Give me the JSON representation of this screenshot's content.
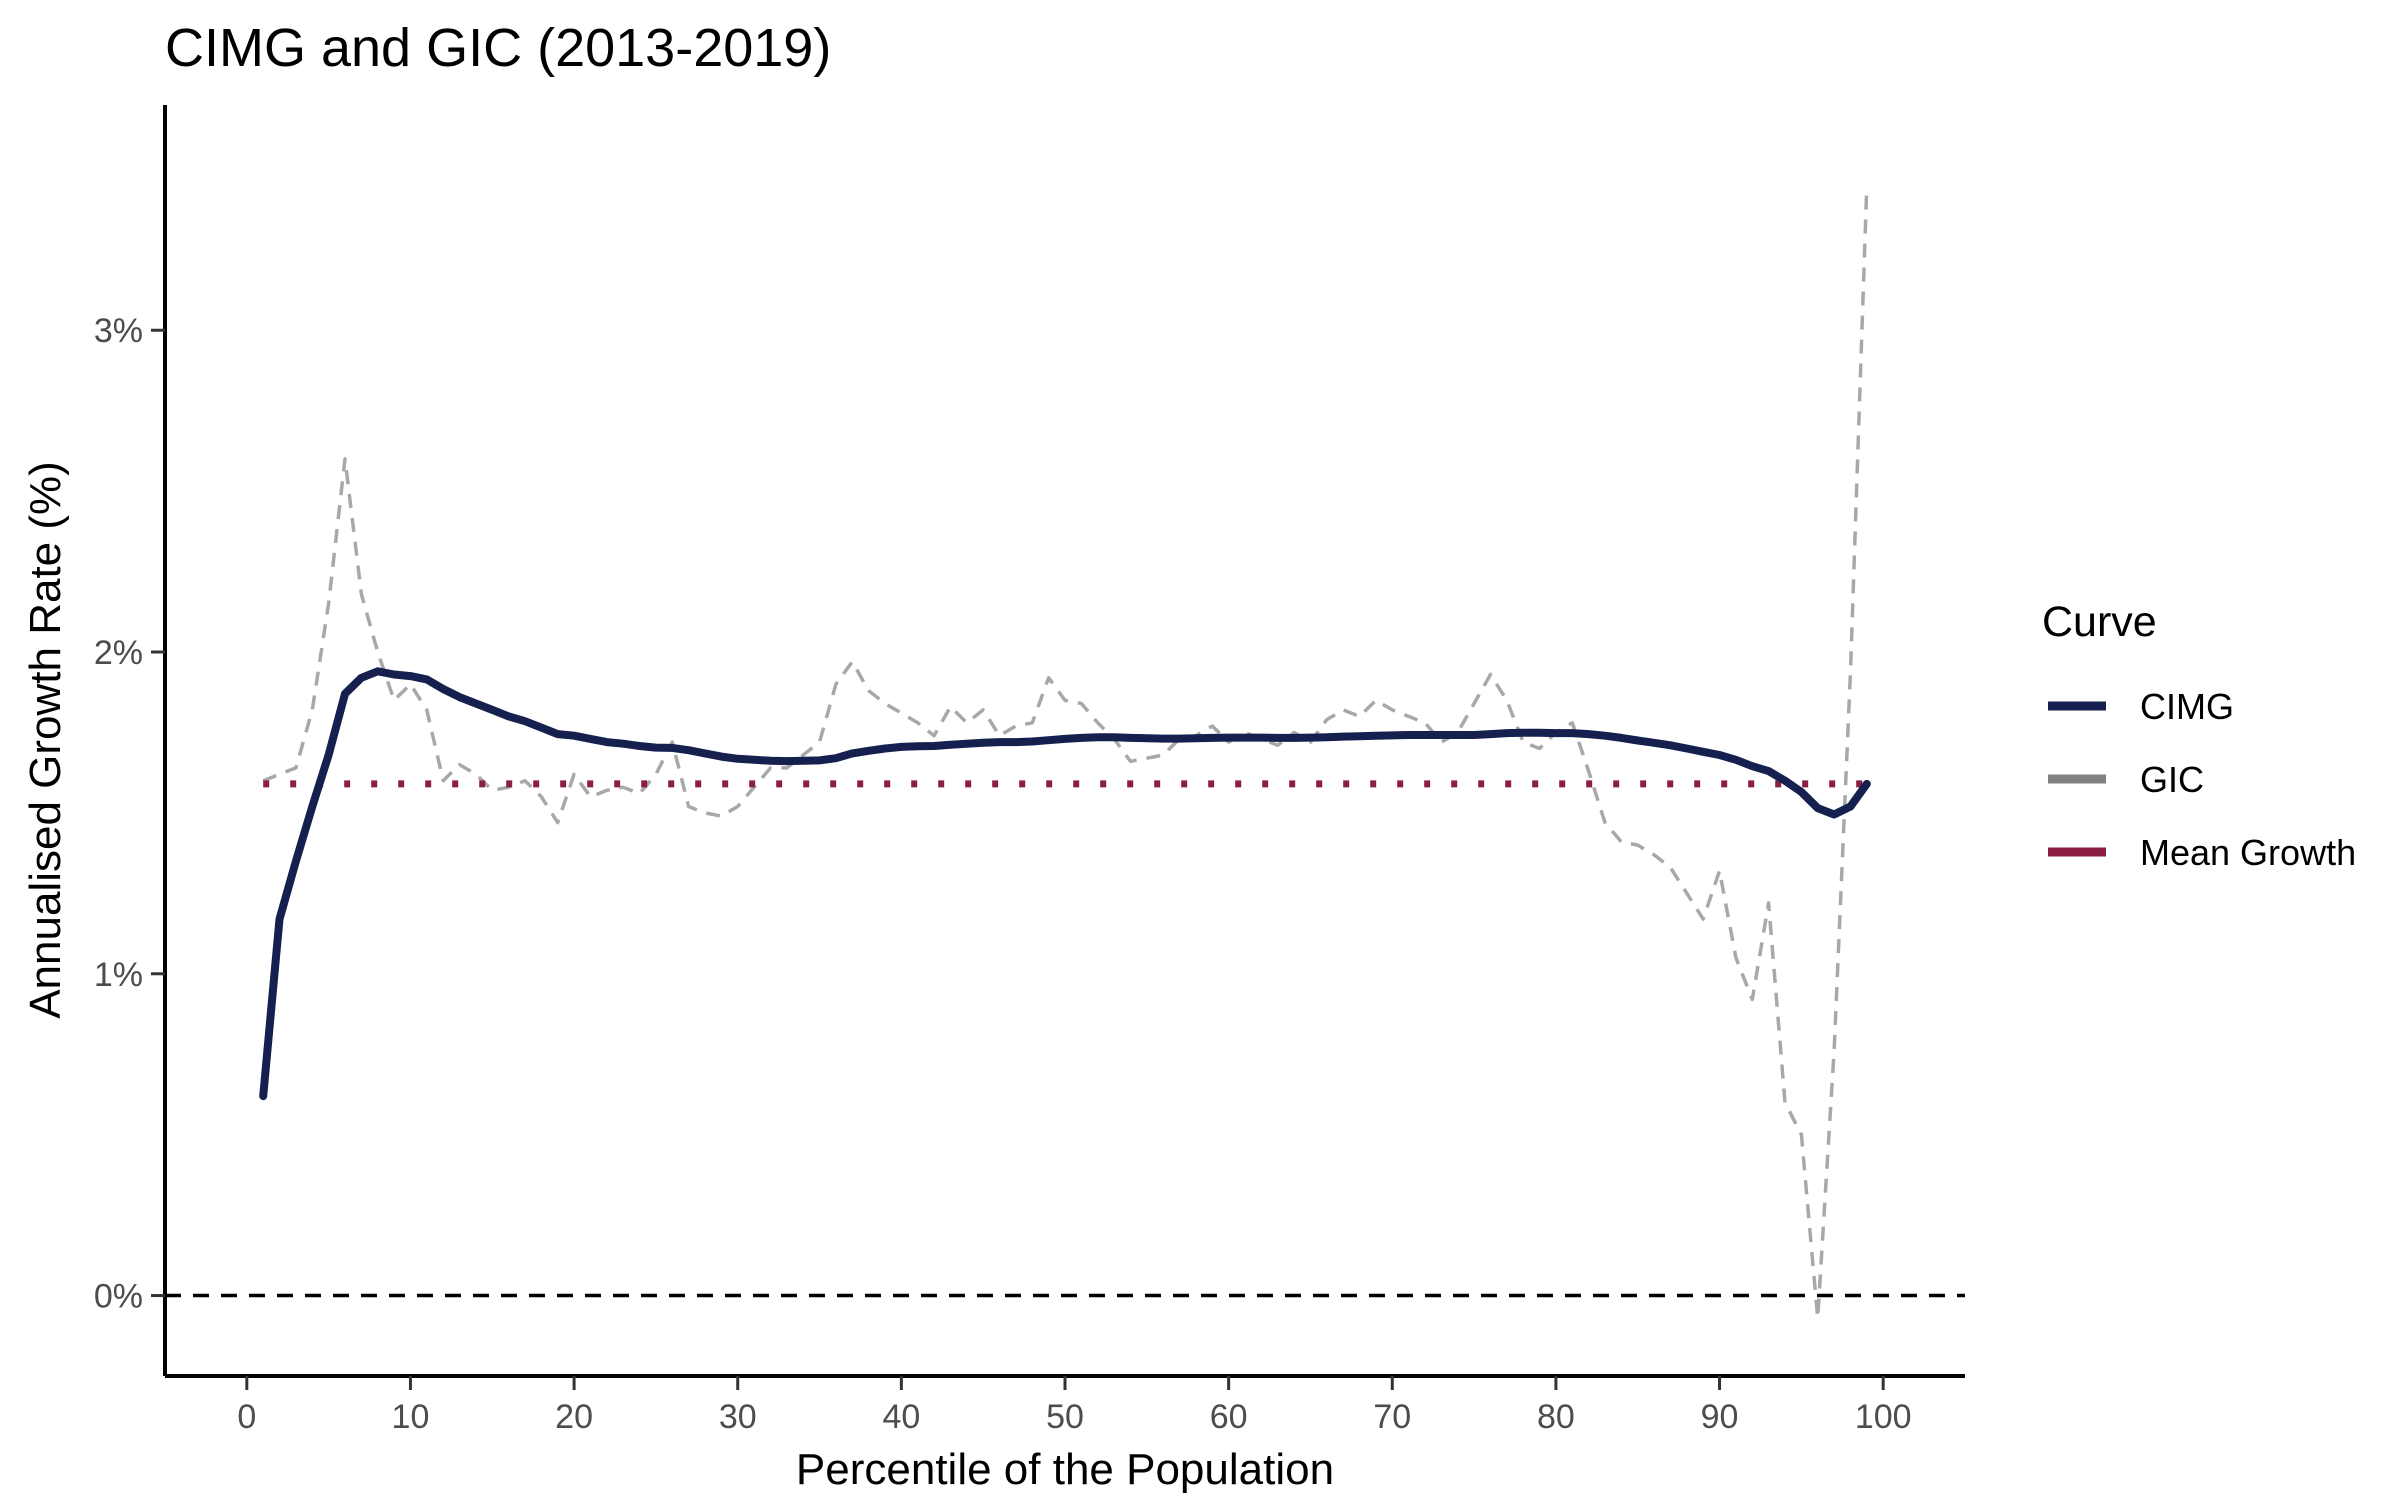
{
  "chart_data": {
    "type": "line",
    "title": "CIMG and GIC (2013-2019)",
    "xlabel": "Percentile of the Population",
    "ylabel": "Annualised Growth Rate (%)",
    "xlim": [
      -5,
      105
    ],
    "ylim": [
      -0.25,
      3.7
    ],
    "x_ticks": [
      0,
      10,
      20,
      30,
      40,
      50,
      60,
      70,
      80,
      90,
      100
    ],
    "x_tick_labels": [
      "0",
      "10",
      "20",
      "30",
      "40",
      "50",
      "60",
      "70",
      "80",
      "90",
      "100"
    ],
    "y_ticks": [
      0,
      1,
      2,
      3
    ],
    "y_tick_labels": [
      "0%",
      "1%",
      "2%",
      "3%"
    ],
    "grid": false,
    "legend": {
      "title": "Curve",
      "position": "right",
      "entries": [
        {
          "label": "CIMG",
          "color": "#15204f"
        },
        {
          "label": "GIC",
          "color": "#808080"
        },
        {
          "label": "Mean Growth",
          "color": "#8b1f41"
        }
      ]
    },
    "reference_lines": [
      {
        "type": "horizontal",
        "y": 0,
        "style": "dashed",
        "color": "#000000"
      }
    ],
    "series": [
      {
        "name": "CIMG",
        "color": "#15204f",
        "style": "solid",
        "x": [
          1,
          2,
          3,
          4,
          5,
          6,
          7,
          8,
          9,
          10,
          11,
          12,
          13,
          14,
          15,
          16,
          17,
          18,
          19,
          20,
          21,
          22,
          23,
          24,
          25,
          26,
          27,
          28,
          29,
          30,
          31,
          32,
          33,
          34,
          35,
          36,
          37,
          38,
          39,
          40,
          41,
          42,
          43,
          44,
          45,
          46,
          47,
          48,
          49,
          50,
          51,
          52,
          53,
          54,
          55,
          56,
          57,
          58,
          59,
          60,
          61,
          62,
          63,
          64,
          65,
          66,
          67,
          68,
          69,
          70,
          71,
          72,
          73,
          74,
          75,
          76,
          77,
          78,
          79,
          80,
          81,
          82,
          83,
          84,
          85,
          86,
          87,
          88,
          89,
          90,
          91,
          92,
          93,
          94,
          95,
          96,
          97,
          98,
          99
        ],
        "y": [
          0.62,
          1.17,
          1.35,
          1.52,
          1.68,
          1.87,
          1.92,
          1.94,
          1.93,
          1.925,
          1.915,
          1.885,
          1.86,
          1.84,
          1.82,
          1.8,
          1.785,
          1.765,
          1.745,
          1.74,
          1.73,
          1.72,
          1.715,
          1.708,
          1.703,
          1.702,
          1.695,
          1.685,
          1.675,
          1.668,
          1.665,
          1.662,
          1.661,
          1.662,
          1.663,
          1.67,
          1.685,
          1.693,
          1.7,
          1.705,
          1.707,
          1.708,
          1.712,
          1.715,
          1.718,
          1.72,
          1.72,
          1.722,
          1.726,
          1.73,
          1.733,
          1.735,
          1.735,
          1.733,
          1.732,
          1.731,
          1.731,
          1.732,
          1.733,
          1.734,
          1.734,
          1.734,
          1.733,
          1.733,
          1.734,
          1.735,
          1.737,
          1.738,
          1.74,
          1.741,
          1.742,
          1.742,
          1.742,
          1.742,
          1.742,
          1.745,
          1.748,
          1.749,
          1.749,
          1.748,
          1.748,
          1.745,
          1.74,
          1.733,
          1.725,
          1.718,
          1.71,
          1.7,
          1.69,
          1.68,
          1.665,
          1.645,
          1.63,
          1.6,
          1.565,
          1.515,
          1.495,
          1.52,
          1.59
        ]
      },
      {
        "name": "GIC",
        "color": "#a8a8a8",
        "style": "dashed",
        "x": [
          1,
          2,
          3,
          4,
          5,
          6,
          7,
          8,
          9,
          10,
          11,
          12,
          13,
          14,
          15,
          16,
          17,
          18,
          19,
          20,
          21,
          22,
          23,
          24,
          25,
          26,
          27,
          28,
          29,
          30,
          31,
          32,
          33,
          34,
          35,
          36,
          37,
          38,
          39,
          40,
          41,
          42,
          43,
          44,
          45,
          46,
          47,
          48,
          49,
          50,
          51,
          52,
          53,
          54,
          55,
          56,
          57,
          58,
          59,
          60,
          61,
          62,
          63,
          64,
          65,
          66,
          67,
          68,
          69,
          70,
          71,
          72,
          73,
          74,
          75,
          76,
          77,
          78,
          79,
          80,
          81,
          82,
          83,
          84,
          85,
          86,
          87,
          88,
          89,
          90,
          91,
          92,
          93,
          94,
          95,
          96,
          97,
          98,
          99
        ],
        "y": [
          1.6,
          1.62,
          1.64,
          1.82,
          2.15,
          2.6,
          2.18,
          2.0,
          1.85,
          1.9,
          1.82,
          1.6,
          1.65,
          1.62,
          1.57,
          1.58,
          1.6,
          1.55,
          1.47,
          1.62,
          1.55,
          1.57,
          1.58,
          1.56,
          1.62,
          1.72,
          1.52,
          1.5,
          1.49,
          1.52,
          1.58,
          1.64,
          1.64,
          1.68,
          1.72,
          1.9,
          1.97,
          1.88,
          1.84,
          1.81,
          1.78,
          1.74,
          1.83,
          1.78,
          1.82,
          1.74,
          1.77,
          1.78,
          1.92,
          1.85,
          1.84,
          1.78,
          1.73,
          1.66,
          1.67,
          1.68,
          1.73,
          1.74,
          1.77,
          1.72,
          1.75,
          1.73,
          1.71,
          1.75,
          1.72,
          1.79,
          1.82,
          1.8,
          1.85,
          1.82,
          1.8,
          1.78,
          1.72,
          1.75,
          1.84,
          1.93,
          1.85,
          1.72,
          1.7,
          1.75,
          1.78,
          1.63,
          1.47,
          1.41,
          1.4,
          1.37,
          1.33,
          1.25,
          1.17,
          1.32,
          1.05,
          0.92,
          1.22,
          0.6,
          0.5,
          -0.07,
          0.76,
          1.94,
          3.45
        ]
      },
      {
        "name": "Mean Growth",
        "color": "#8b1f41",
        "style": "dotted",
        "x": [
          1,
          99
        ],
        "y": [
          1.59,
          1.59
        ]
      }
    ]
  }
}
